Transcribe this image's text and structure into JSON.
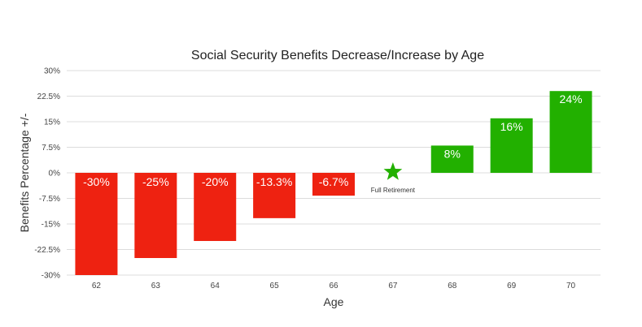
{
  "chart_data": {
    "type": "bar",
    "title": "Social Security Benefits Decrease/Increase by Age",
    "xlabel": "Age",
    "ylabel": "Benefits Percentage +/-",
    "categories": [
      "62",
      "63",
      "64",
      "65",
      "66",
      "67",
      "68",
      "69",
      "70"
    ],
    "values": [
      -30,
      -25,
      -20,
      -13.3,
      -6.7,
      0,
      8,
      16,
      24
    ],
    "data_labels": [
      "-30%",
      "-25%",
      "-20%",
      "-13.3%",
      "-6.7%",
      "",
      "8%",
      "16%",
      "24%"
    ],
    "ylim": [
      -30,
      30
    ],
    "yticks": [
      30,
      22.5,
      15,
      7.5,
      0,
      -7.5,
      -15,
      -22.5,
      -30
    ],
    "ytick_labels": [
      "30%",
      "22.5%",
      "15%",
      "7.5%",
      "0%",
      "-7.5%",
      "-15%",
      "-22.5%",
      "-30%"
    ],
    "grid": true,
    "legend": "none",
    "colors": {
      "negative": "#ee2211",
      "positive": "#22b000",
      "marker": "#22b000"
    },
    "annotation": {
      "category": "67",
      "marker": "star-icon",
      "text": "Full Retirement"
    }
  }
}
